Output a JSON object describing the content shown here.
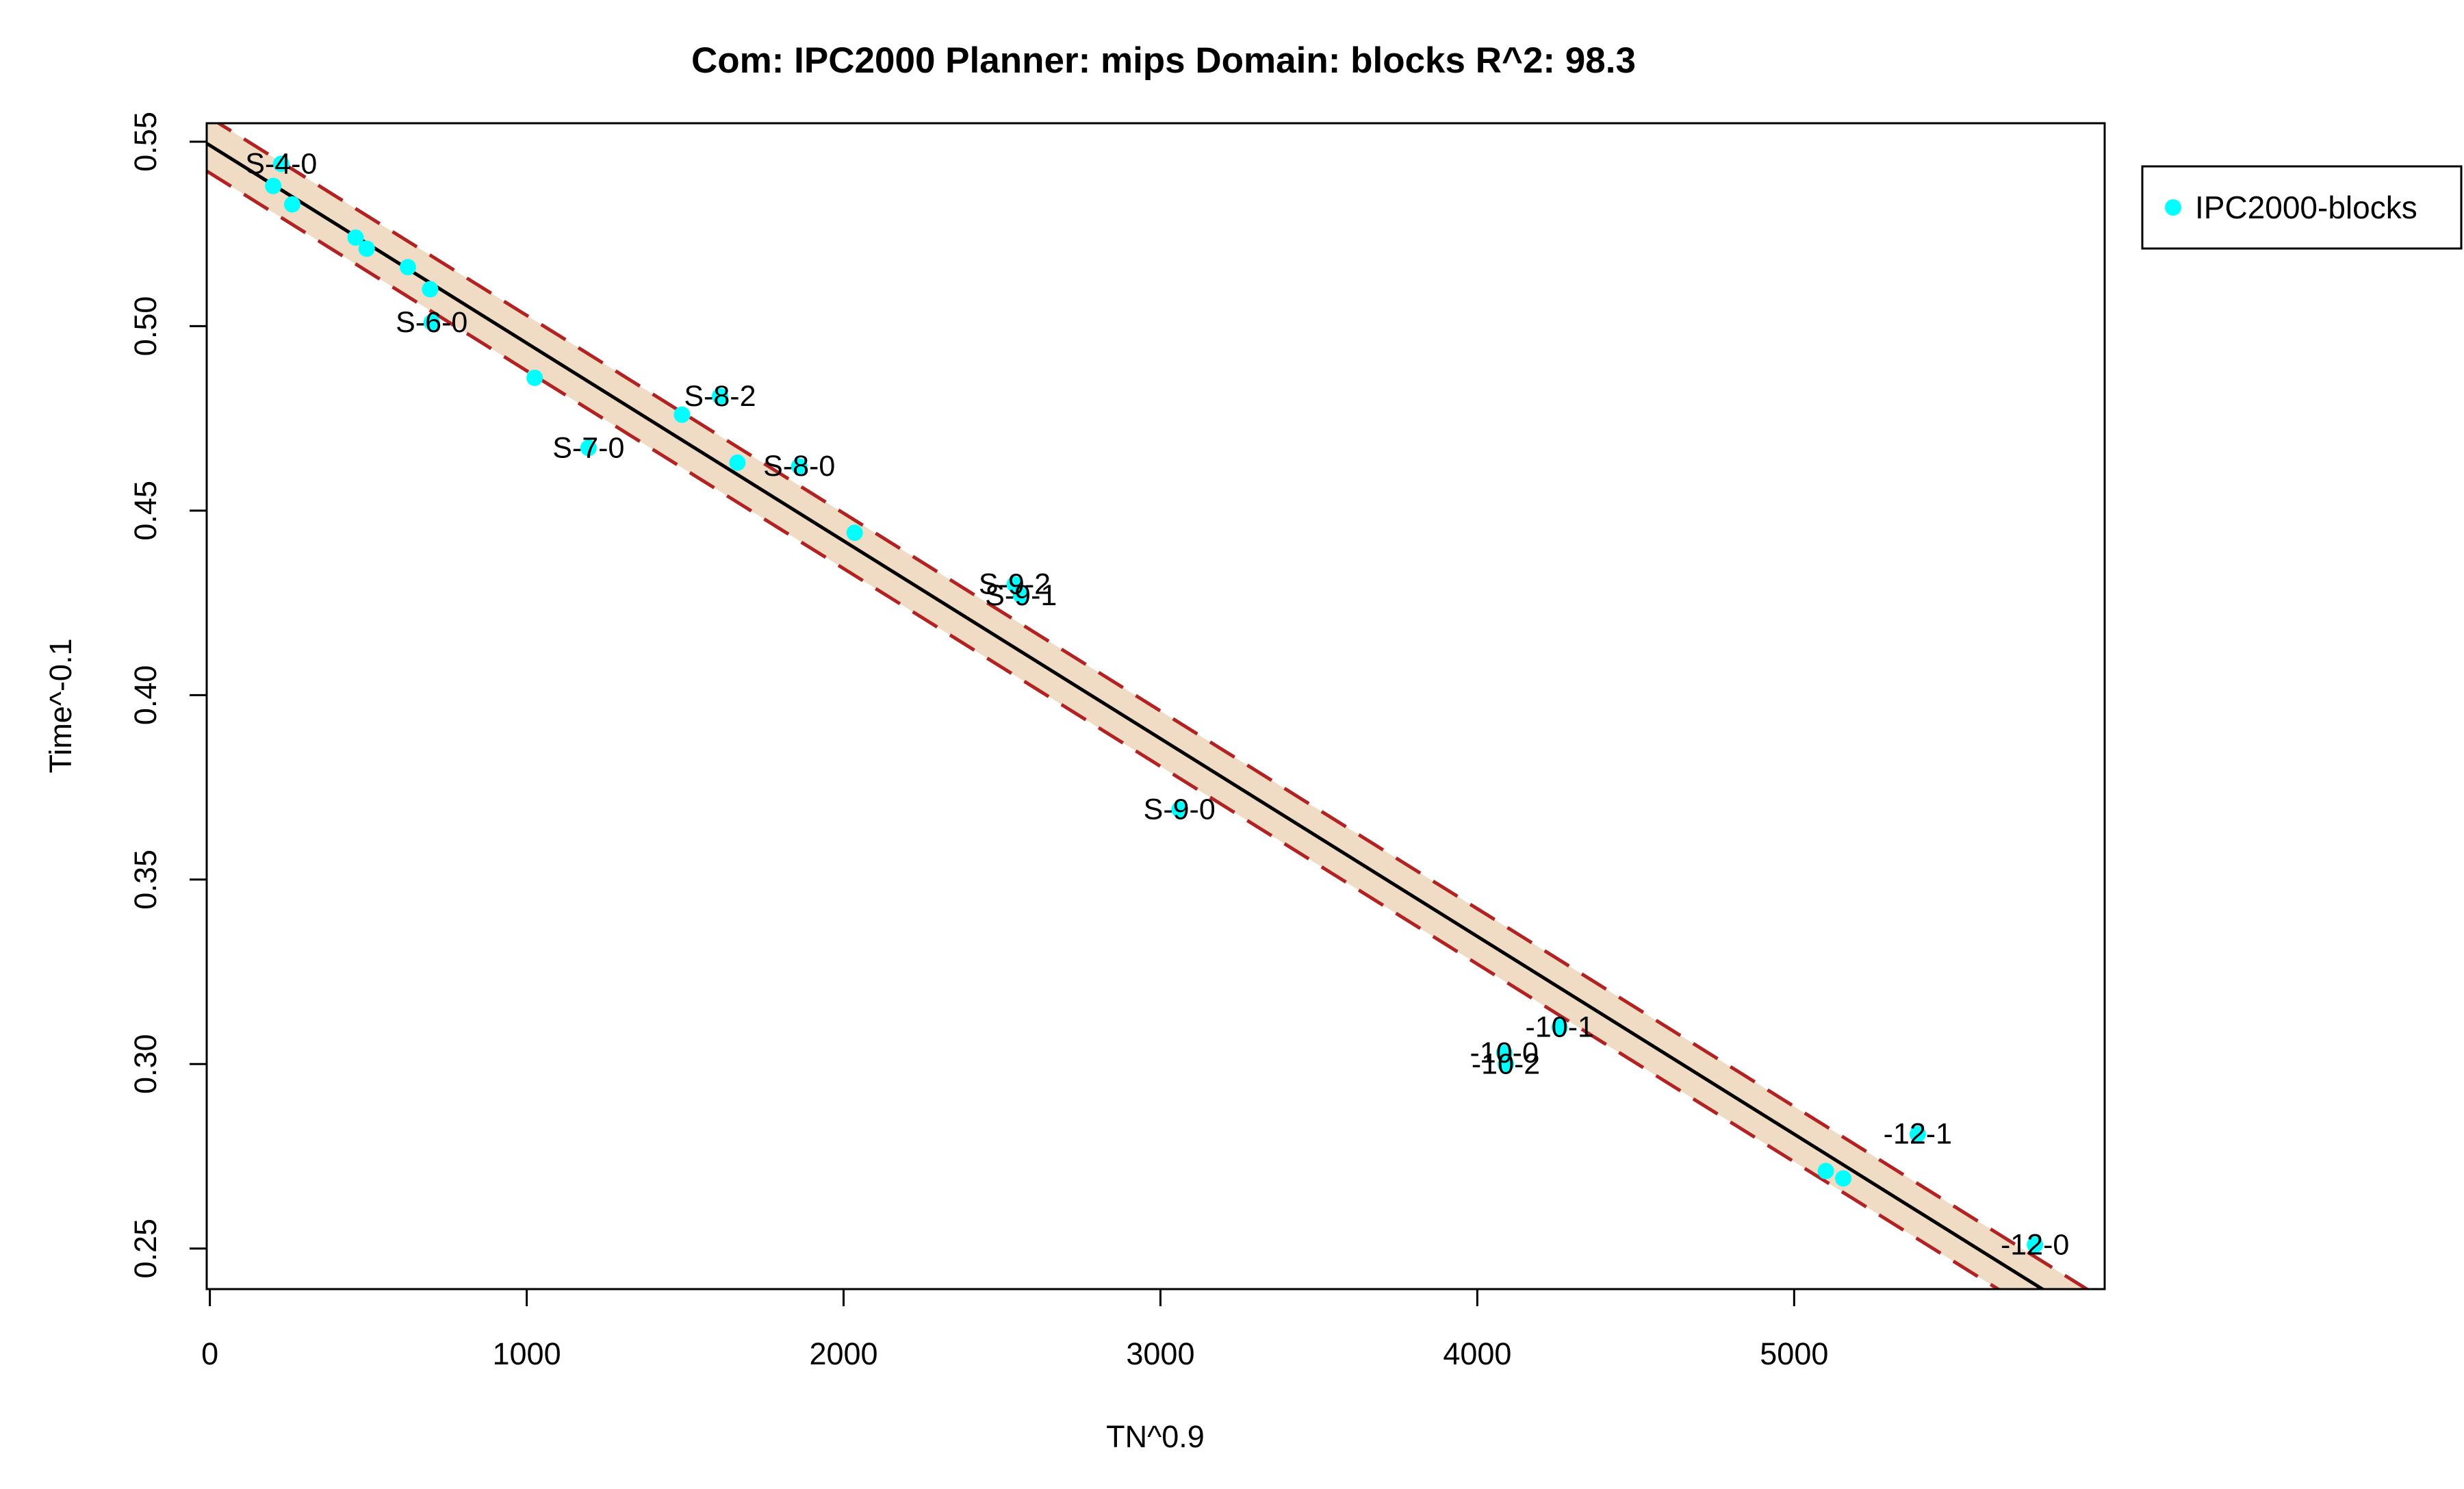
{
  "chart_data": {
    "type": "scatter",
    "title": "Com: IPC2000 Planner: mips Domain: blocks R^2: 98.3",
    "xlabel": "TN^0.9",
    "ylabel": "Time^-0.1",
    "xlim": [
      -10,
      5980
    ],
    "ylim": [
      0.239,
      0.555
    ],
    "xticks": [
      0,
      1000,
      2000,
      3000,
      4000,
      5000
    ],
    "xtick_labels": [
      "0",
      "1000",
      "2000",
      "3000",
      "4000",
      "5000"
    ],
    "yticks": [
      0.25,
      0.3,
      0.35,
      0.4,
      0.45,
      0.5,
      0.55
    ],
    "ytick_labels": [
      "0.25",
      "0.30",
      "0.35",
      "0.40",
      "0.45",
      "0.50",
      "0.55"
    ],
    "grid": false,
    "legend": {
      "position": "right",
      "entries": [
        "IPC2000-blocks"
      ]
    },
    "colors": {
      "points": "#00ffff",
      "fit_line": "#000000",
      "band_fill": "#f0dcc4",
      "band_lines": "#b22222"
    },
    "fit": {
      "intercept": 0.549,
      "slope": -5.36e-05
    },
    "band": {
      "halfwidth": 0.0075
    },
    "series": [
      {
        "name": "IPC2000-blocks",
        "points": [
          {
            "x": 200,
            "y": 0.538,
            "label": ""
          },
          {
            "x": 225,
            "y": 0.544,
            "label": "S-4-0"
          },
          {
            "x": 260,
            "y": 0.533,
            "label": ""
          },
          {
            "x": 460,
            "y": 0.524,
            "label": ""
          },
          {
            "x": 495,
            "y": 0.521,
            "label": ""
          },
          {
            "x": 625,
            "y": 0.516,
            "label": ""
          },
          {
            "x": 695,
            "y": 0.51,
            "label": ""
          },
          {
            "x": 700,
            "y": 0.501,
            "label": "S-6-0"
          },
          {
            "x": 1025,
            "y": 0.486,
            "label": ""
          },
          {
            "x": 1195,
            "y": 0.467,
            "label": "S-7-0"
          },
          {
            "x": 1490,
            "y": 0.476,
            "label": ""
          },
          {
            "x": 1610,
            "y": 0.481,
            "label": "S-8-2"
          },
          {
            "x": 1665,
            "y": 0.463,
            "label": ""
          },
          {
            "x": 1860,
            "y": 0.462,
            "label": "S-8-0"
          },
          {
            "x": 2035,
            "y": 0.444,
            "label": ""
          },
          {
            "x": 2540,
            "y": 0.43,
            "label": "S-9-2"
          },
          {
            "x": 2560,
            "y": 0.427,
            "label": "S-9-1"
          },
          {
            "x": 3060,
            "y": 0.369,
            "label": "S-9-0"
          },
          {
            "x": 4085,
            "y": 0.303,
            "label": "-10-0"
          },
          {
            "x": 4090,
            "y": 0.3,
            "label": "-10-2"
          },
          {
            "x": 4260,
            "y": 0.31,
            "label": "-10-1"
          },
          {
            "x": 5100,
            "y": 0.271,
            "label": ""
          },
          {
            "x": 5155,
            "y": 0.269,
            "label": ""
          },
          {
            "x": 5390,
            "y": 0.281,
            "label": "-12-1"
          },
          {
            "x": 5760,
            "y": 0.251,
            "label": "-12-0"
          }
        ]
      }
    ]
  }
}
